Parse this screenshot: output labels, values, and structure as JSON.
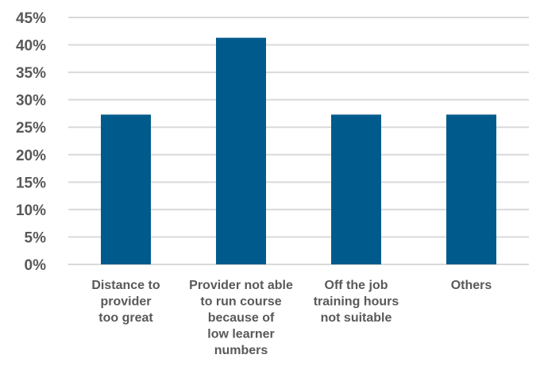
{
  "chart_data": {
    "type": "bar",
    "title": "",
    "xlabel": "",
    "ylabel": "",
    "ylim": [
      0,
      45
    ],
    "y_ticks": [
      "0%",
      "5%",
      "10%",
      "15%",
      "20%",
      "25%",
      "30%",
      "35%",
      "40%",
      "45%"
    ],
    "categories": [
      [
        "Distance to",
        "provider",
        "too great"
      ],
      [
        "Provider not able",
        "to run course",
        "because of",
        "low learner",
        "numbers"
      ],
      [
        "Off the job",
        "training hours",
        "not suitable"
      ],
      [
        "Others"
      ]
    ],
    "values": [
      27.3,
      41.3,
      27.3,
      27.3
    ],
    "value_unit": "%",
    "grid": true,
    "legend": "none",
    "colors": {
      "bar": "#005b8c",
      "grid": "#d9d9d9",
      "text": "#595959"
    }
  }
}
